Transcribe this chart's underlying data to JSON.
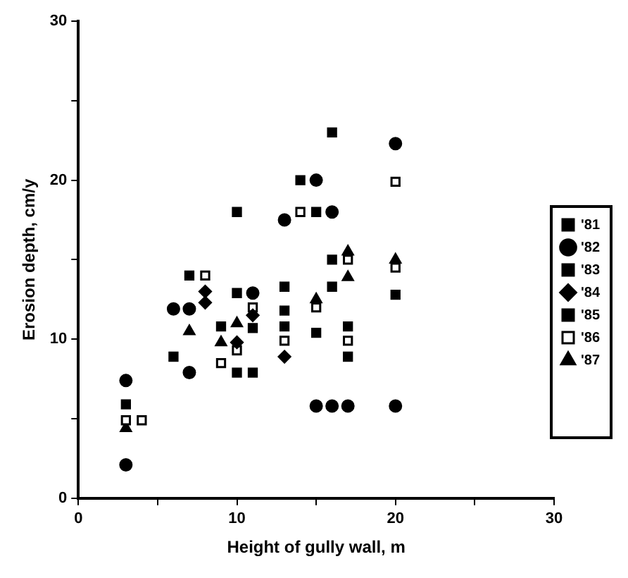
{
  "chart_data": {
    "type": "scatter",
    "xlabel": "Height of gully wall, m",
    "ylabel": "Erosion depth, cm/y",
    "xlim": [
      0,
      30
    ],
    "xticks": [
      0,
      {
        "value": 5,
        "label": null
      },
      10,
      {
        "value": 15,
        "label": null
      },
      20,
      {
        "value": 25,
        "label": null
      },
      30
    ],
    "ylim": [
      0,
      30
    ],
    "yticks": [
      0,
      {
        "value": 5,
        "label": null
      },
      10,
      {
        "value": 15,
        "label": null
      },
      20,
      {
        "value": 25,
        "label": null
      },
      30
    ],
    "grid": false,
    "legend": "right",
    "series": [
      {
        "name": "'81",
        "color": "#000000",
        "marker": "square",
        "x": [
          3,
          7,
          10,
          13,
          14,
          16,
          20
        ],
        "values": [
          5.9,
          14,
          18,
          13.3,
          20,
          23,
          12.8
        ]
      },
      {
        "name": "'82",
        "color": "#000000",
        "marker": "circle",
        "x": [
          3,
          3,
          6,
          7,
          7,
          11,
          13,
          15,
          16,
          15,
          16,
          17,
          20,
          20
        ],
        "values": [
          7.4,
          2.1,
          11.9,
          11.9,
          7.9,
          12.9,
          17.5,
          20,
          18,
          5.8,
          5.8,
          5.8,
          5.8,
          22.3
        ]
      },
      {
        "name": "'83",
        "color": "#000000",
        "marker": "square",
        "x": [
          6,
          10,
          11,
          13,
          15,
          16,
          17
        ],
        "values": [
          8.9,
          12.9,
          10.7,
          11.8,
          18,
          15,
          10.8
        ]
      },
      {
        "name": "'84",
        "color": "#000000",
        "marker": "diamond",
        "x": [
          8,
          8,
          10,
          11,
          13
        ],
        "values": [
          13,
          12.3,
          9.8,
          11.5,
          8.9
        ]
      },
      {
        "name": "'85",
        "color": "#000000",
        "marker": "square",
        "x": [
          9,
          10,
          11,
          13,
          15,
          16,
          17
        ],
        "values": [
          10.8,
          7.9,
          7.9,
          10.8,
          10.4,
          13.3,
          8.9
        ]
      },
      {
        "name": "'86",
        "color": "#ffffff",
        "marker": "square",
        "x": [
          3,
          4,
          8,
          9,
          10,
          11,
          13,
          14,
          15,
          17,
          17,
          20,
          20
        ],
        "values": [
          4.9,
          4.9,
          14,
          8.5,
          9.3,
          12,
          9.9,
          18,
          12,
          15,
          9.9,
          19.9,
          14.5
        ]
      },
      {
        "name": "'87",
        "color": "#000000",
        "marker": "triangle",
        "x": [
          3,
          7,
          9,
          10,
          15,
          17,
          17,
          20
        ],
        "values": [
          4.4,
          10.5,
          9.8,
          11,
          12.5,
          15.5,
          13.9,
          15
        ]
      }
    ]
  }
}
